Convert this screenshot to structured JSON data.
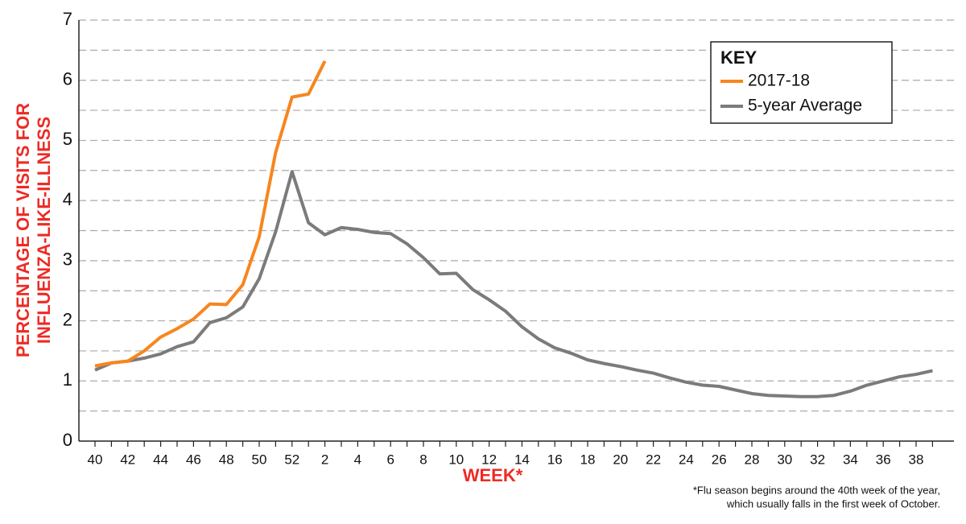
{
  "chart_data": {
    "type": "line",
    "categories": [
      "40",
      null,
      "42",
      null,
      "44",
      null,
      "46",
      null,
      "48",
      null,
      "50",
      null,
      "52",
      null,
      "2",
      null,
      "4",
      null,
      "6",
      null,
      "8",
      null,
      "10",
      null,
      "12",
      null,
      "14",
      null,
      "16",
      null,
      "18",
      null,
      "20",
      null,
      "22",
      null,
      "24",
      null,
      "26",
      null,
      "28",
      null,
      "30",
      null,
      "32",
      null,
      "34",
      null,
      "36",
      null,
      "38",
      null
    ],
    "series": [
      {
        "name": "2017-18",
        "color": "#f7861e",
        "values": [
          1.25,
          1.3,
          1.33,
          1.5,
          1.73,
          1.87,
          2.03,
          2.28,
          2.27,
          2.6,
          3.4,
          4.8,
          5.72,
          5.77,
          6.32,
          null,
          null,
          null,
          null,
          null,
          null,
          null,
          null,
          null,
          null,
          null,
          null,
          null,
          null,
          null,
          null,
          null,
          null,
          null,
          null,
          null,
          null,
          null,
          null,
          null,
          null,
          null,
          null,
          null,
          null,
          null,
          null,
          null,
          null,
          null,
          null,
          null
        ]
      },
      {
        "name": "5-year Average",
        "color": "#7b7b7b",
        "values": [
          1.18,
          1.3,
          1.33,
          1.38,
          1.45,
          1.57,
          1.65,
          1.97,
          2.05,
          2.23,
          2.7,
          3.48,
          4.48,
          3.63,
          3.43,
          3.55,
          3.52,
          3.47,
          3.45,
          3.28,
          3.05,
          2.78,
          2.79,
          2.52,
          2.35,
          2.16,
          1.9,
          1.7,
          1.55,
          1.46,
          1.35,
          1.29,
          1.24,
          1.18,
          1.13,
          1.05,
          0.98,
          0.93,
          0.91,
          0.85,
          0.79,
          0.76,
          0.75,
          0.74,
          0.74,
          0.76,
          0.83,
          0.93,
          1.0,
          1.07,
          1.11,
          1.17
        ]
      }
    ],
    "ylim": [
      0,
      7
    ],
    "yticks": [
      0,
      1,
      2,
      3,
      4,
      5,
      6,
      7
    ],
    "grid": true,
    "xlabel": "WEEK*",
    "ylabel": [
      "PERCENTAGE OF VISITS FOR",
      "INFLUENZA-LIKE-ILLNESS"
    ],
    "legend_title": "KEY",
    "legend": "upper right",
    "footnote": [
      "*Flu season begins around the 40th week of the year,",
      "which usually falls in the first week of October."
    ]
  }
}
